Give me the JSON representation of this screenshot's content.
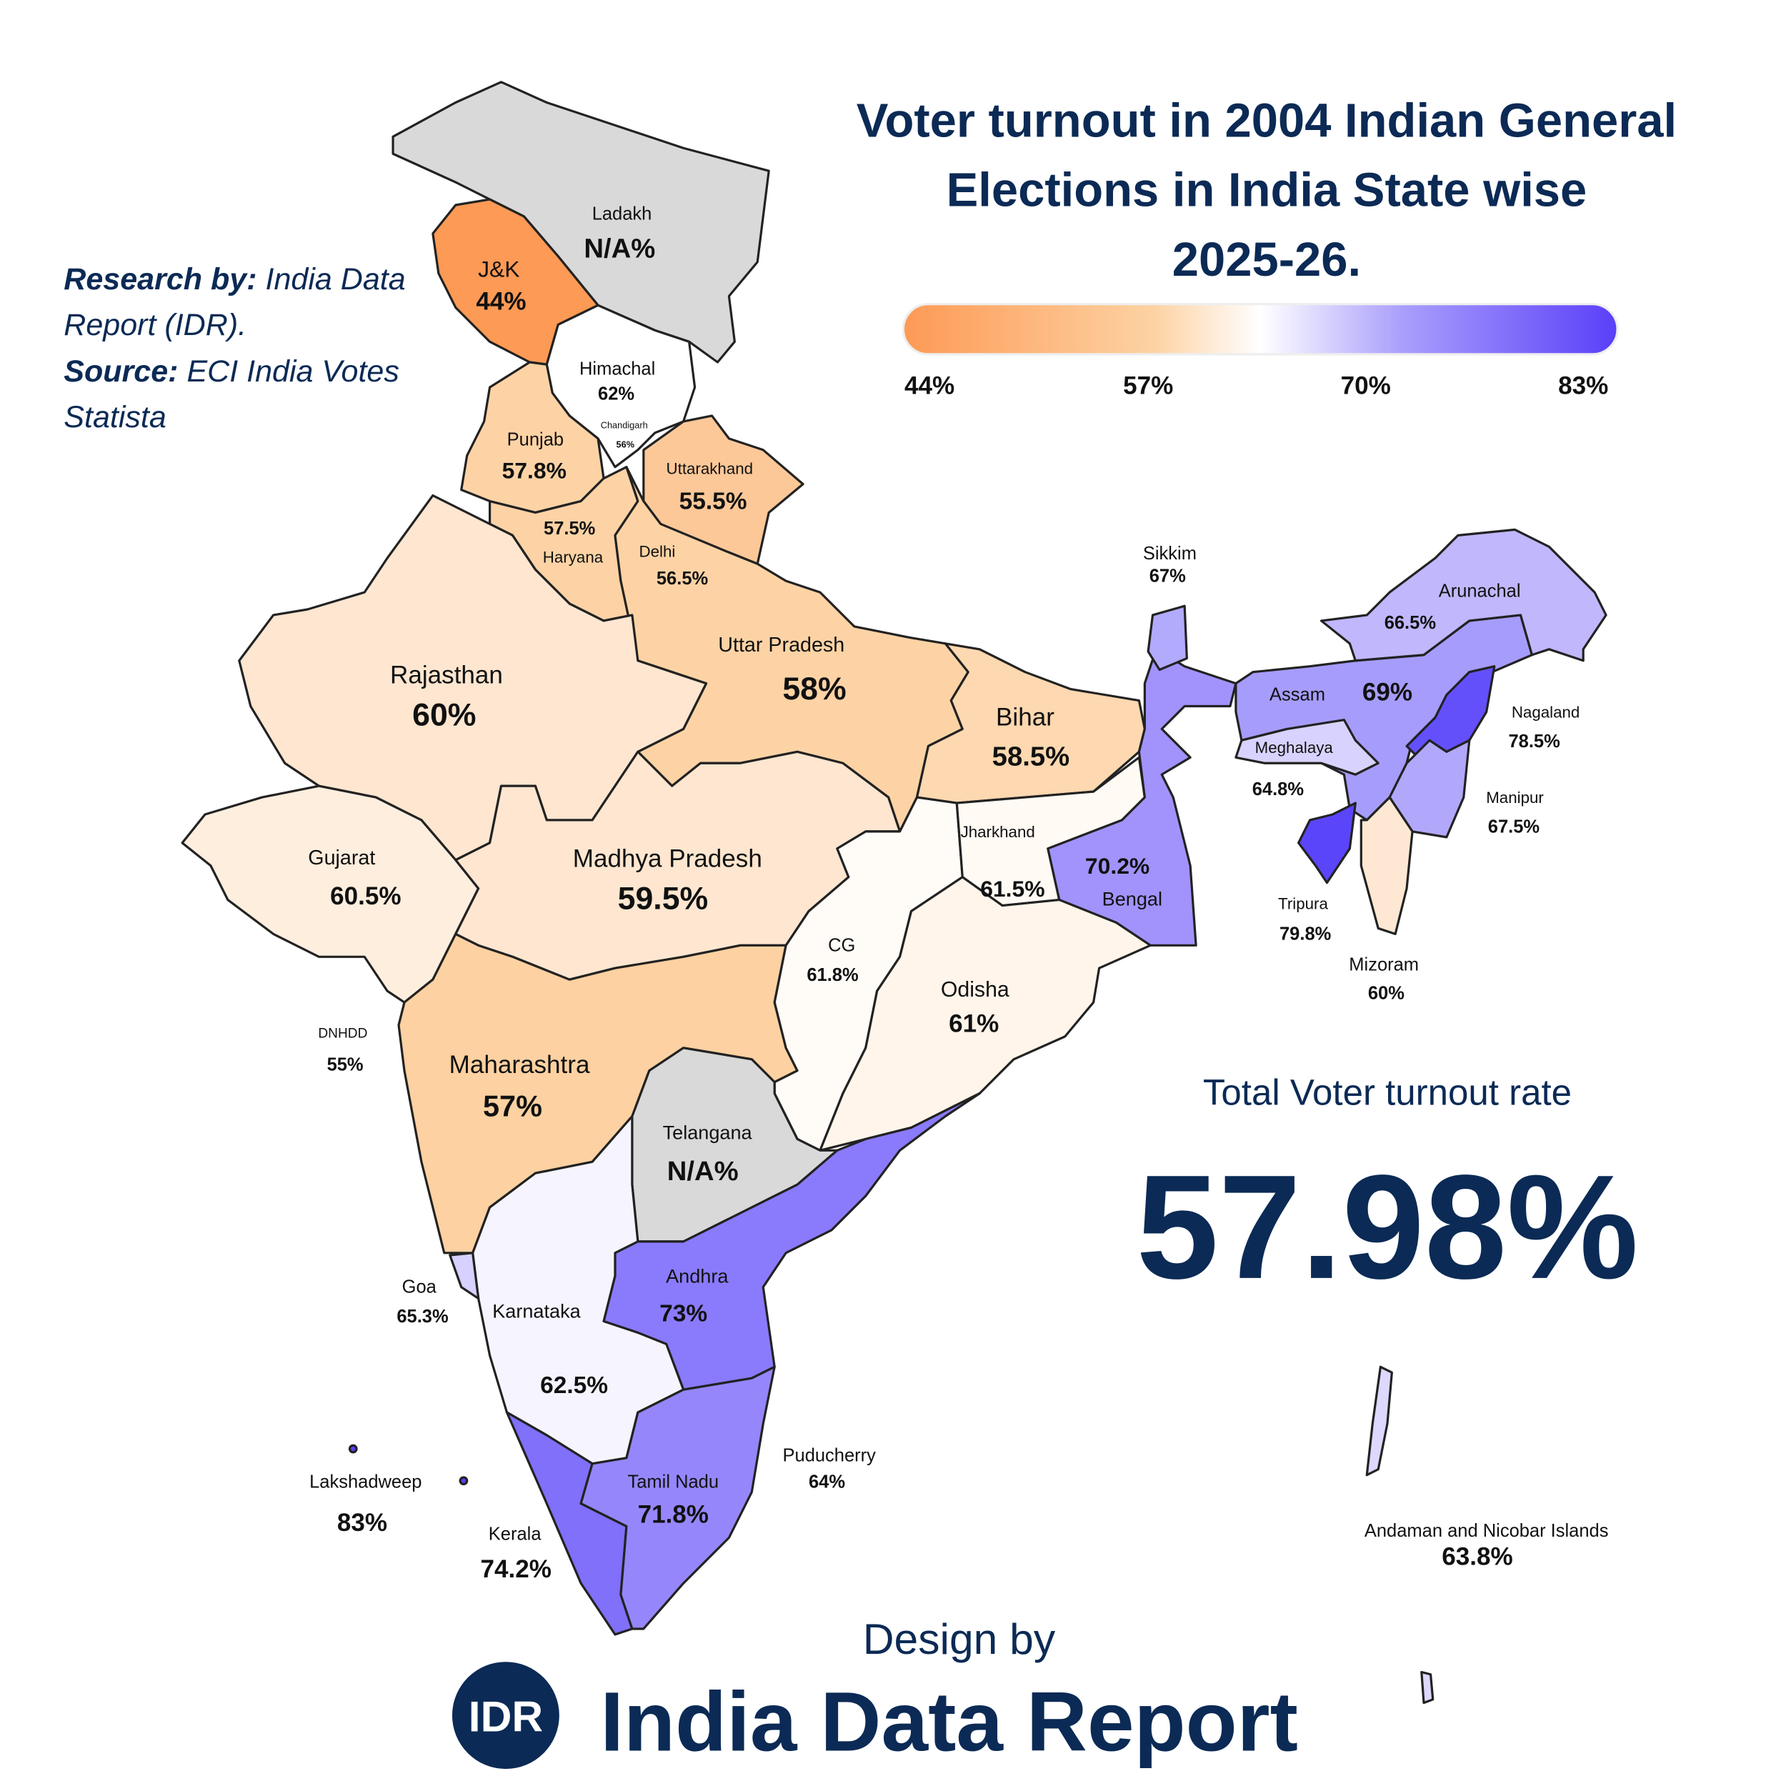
{
  "title": {
    "line1": "Voter turnout in 2004 Indian General",
    "line2": "Elections in India State wise",
    "line3": "2025-26."
  },
  "legend": {
    "colors": [
      "#fd9a55",
      "#fdd2a3",
      "#ffffff",
      "#a99efc",
      "#5a3ff9"
    ],
    "ticks": [
      "44%",
      "57%",
      "70%",
      "83%"
    ]
  },
  "credits": {
    "research_label": "Research by:",
    "research_value": "India Data",
    "research_value2": "Report (IDR).",
    "source_label": "Source:",
    "source_value": "ECI India Votes",
    "source_value2": "Statista"
  },
  "total": {
    "label": "Total Voter turnout rate",
    "value": "57.98%"
  },
  "footer": {
    "design_by": "Design by",
    "logo_text": "IDR",
    "brand": "India Data Report"
  },
  "states": {
    "ladakh": {
      "name": "Ladakh",
      "value": "N/A%",
      "color": "#d9d9d9"
    },
    "jk": {
      "name": "J&K",
      "value": "44%",
      "color": "#fd9a55"
    },
    "himachal": {
      "name": "Himachal",
      "value": "62%",
      "color": "#ffffff"
    },
    "chandigarh": {
      "name": "Chandigarh",
      "value": "56%"
    },
    "punjab": {
      "name": "Punjab",
      "value": "57.8%",
      "color": "#fdd3a5"
    },
    "haryana": {
      "name": "Haryana",
      "value": "57.5%",
      "color": "#fdd3a5"
    },
    "delhi": {
      "name": "Delhi",
      "value": "56.5%"
    },
    "uttarakhand": {
      "name": "Uttarakhand",
      "value": "55.5%",
      "color": "#fdc898"
    },
    "uttar_pradesh": {
      "name": "Uttar Pradesh",
      "value": "58%",
      "color": "#fdd3a5"
    },
    "rajasthan": {
      "name": "Rajasthan",
      "value": "60%",
      "color": "#fee6d0"
    },
    "gujarat": {
      "name": "Gujarat",
      "value": "60.5%",
      "color": "#feeede"
    },
    "madhya_pradesh": {
      "name": "Madhya Pradesh",
      "value": "59.5%",
      "color": "#fee6d0"
    },
    "bihar": {
      "name": "Bihar",
      "value": "58.5%",
      "color": "#fdd8b0"
    },
    "jharkhand": {
      "name": "Jharkhand",
      "value": "61.5%",
      "color": "#fffaf4"
    },
    "bengal": {
      "name": "Bengal",
      "value": "70.2%",
      "color": "#a193fb"
    },
    "sikkim": {
      "name": "Sikkim",
      "value": "67%",
      "color": "#b2aafc"
    },
    "cg": {
      "name": "CG",
      "value": "61.8%",
      "color": "#fffcf8"
    },
    "odisha": {
      "name": "Odisha",
      "value": "61%",
      "color": "#fff5ea"
    },
    "maharashtra": {
      "name": "Maharashtra",
      "value": "57%",
      "color": "#fdd1a1"
    },
    "dnhdd": {
      "name": "DNHDD",
      "value": "55%"
    },
    "telangana": {
      "name": "Telangana",
      "value": "N/A%",
      "color": "#d9d9d9"
    },
    "andhra": {
      "name": "Andhra",
      "value": "73%",
      "color": "#8a7bfc"
    },
    "karnataka": {
      "name": "Karnataka",
      "value": "62.5%",
      "color": "#f6f5ff"
    },
    "goa": {
      "name": "Goa",
      "value": "65.3%",
      "color": "#d6d1fe"
    },
    "kerala": {
      "name": "Kerala",
      "value": "74.2%",
      "color": "#8070fa"
    },
    "tamil_nadu": {
      "name": "Tamil Nadu",
      "value": "71.8%",
      "color": "#9587fb"
    },
    "puducherry": {
      "name": "Puducherry",
      "value": "64%"
    },
    "lakshadweep": {
      "name": "Lakshadweep",
      "value": "83%"
    },
    "andaman": {
      "name": "Andaman and Nicobar Islands",
      "value": "63.8%",
      "color": "#dcd8fe"
    },
    "assam": {
      "name": "Assam",
      "value": "69%",
      "color": "#a69cfb"
    },
    "arunachal": {
      "name": "Arunachal",
      "value": "66.5%",
      "color": "#c0b7fd"
    },
    "meghalaya": {
      "name": "Meghalaya",
      "value": "64.8%",
      "color": "#d8d3fe"
    },
    "nagaland": {
      "name": "Nagaland",
      "value": "78.5%",
      "color": "#6350fa"
    },
    "manipur": {
      "name": "Manipur",
      "value": "67.5%",
      "color": "#b1a8fb"
    },
    "tripura": {
      "name": "Tripura",
      "value": "79.8%",
      "color": "#5b45fa"
    },
    "mizoram": {
      "name": "Mizoram",
      "value": "60%",
      "color": "#fee8d4"
    }
  }
}
